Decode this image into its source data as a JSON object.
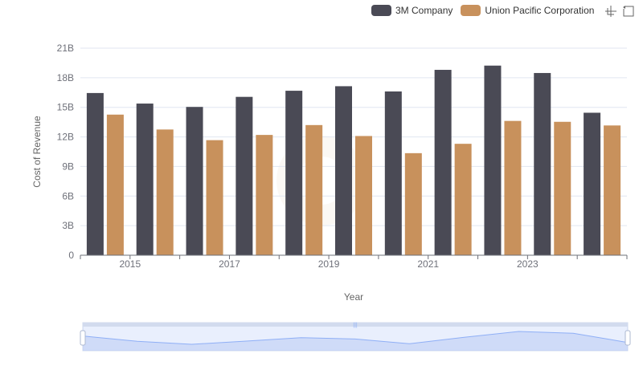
{
  "legend": {
    "items": [
      {
        "label": "3M Company",
        "color": "#4a4a55"
      },
      {
        "label": "Union Pacific Corporation",
        "color": "#c8915c"
      }
    ]
  },
  "toolbox": {
    "icons": [
      "zoom-icon",
      "zoom-reset-icon"
    ]
  },
  "chart_data": {
    "type": "bar",
    "categories": [
      "2014",
      "2015",
      "2016",
      "2017",
      "2018",
      "2019",
      "2020",
      "2021",
      "2022",
      "2023",
      "2024"
    ],
    "x_tick_labels": [
      "2015",
      "2017",
      "2019",
      "2021",
      "2023"
    ],
    "series": [
      {
        "name": "3M Company",
        "color": "#4a4a55",
        "values": [
          16.45,
          15.38,
          15.04,
          16.06,
          16.68,
          17.14,
          16.61,
          18.8,
          19.23,
          18.48,
          14.45
        ]
      },
      {
        "name": "Union Pacific Corporation",
        "color": "#c8915c",
        "values": [
          14.26,
          12.75,
          11.67,
          12.2,
          13.2,
          12.09,
          10.35,
          11.3,
          13.62,
          13.53,
          13.16
        ]
      }
    ],
    "xlabel": "Year",
    "ylabel": "Cost of Revenue",
    "ylim": [
      0,
      21
    ],
    "y_ticks": [
      {
        "value": 0,
        "label": "0"
      },
      {
        "value": 3,
        "label": "3B"
      },
      {
        "value": 6,
        "label": "6B"
      },
      {
        "value": 9,
        "label": "9B"
      },
      {
        "value": 12,
        "label": "12B"
      },
      {
        "value": 15,
        "label": "15B"
      },
      {
        "value": 18,
        "label": "18B"
      },
      {
        "value": 21,
        "label": "21B"
      }
    ],
    "grid": true,
    "legend_position": "top-right",
    "data_zoom": {
      "start": 0,
      "end": 100
    }
  }
}
